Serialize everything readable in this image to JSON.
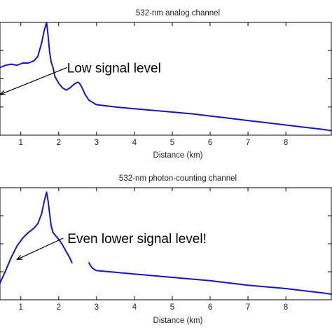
{
  "colors": {
    "series": "#1414cc",
    "axes": "#000000",
    "text": "#222222"
  },
  "chart_data": [
    {
      "type": "line",
      "title": "532-nm analog channel",
      "xlabel": "Distance (km)",
      "ylabel": "",
      "x_ticks": [
        "1",
        "2",
        "3",
        "4",
        "5",
        "6",
        "7",
        "8"
      ],
      "xlim": [
        0.45,
        9.2
      ],
      "ylim": [
        0,
        1
      ],
      "grid": false,
      "series": [
        {
          "name": "",
          "x": [
            0.45,
            0.6,
            0.75,
            0.9,
            1.05,
            1.2,
            1.35,
            1.45,
            1.55,
            1.62,
            1.68,
            1.72,
            1.76,
            1.8,
            1.85,
            1.9,
            2.0,
            2.1,
            2.2,
            2.3,
            2.4,
            2.5,
            2.55,
            2.62,
            2.7,
            2.8,
            2.9,
            3.0,
            3.5,
            4.0,
            4.5,
            5.0,
            5.5,
            6.0,
            6.5,
            7.0,
            7.5,
            8.0,
            8.5,
            9.0,
            9.2
          ],
          "y": [
            0.6,
            0.62,
            0.63,
            0.62,
            0.64,
            0.64,
            0.66,
            0.7,
            0.82,
            0.93,
            1.0,
            0.88,
            0.74,
            0.65,
            0.6,
            0.52,
            0.46,
            0.42,
            0.4,
            0.42,
            0.45,
            0.47,
            0.46,
            0.42,
            0.36,
            0.31,
            0.29,
            0.27,
            0.25,
            0.235,
            0.22,
            0.205,
            0.19,
            0.17,
            0.15,
            0.13,
            0.11,
            0.09,
            0.07,
            0.05,
            0.04
          ]
        }
      ],
      "annotations": [
        {
          "text": "Low signal level",
          "arrow_from": [
            2.22,
            0.6
          ],
          "arrow_to": [
            0.45,
            0.36
          ]
        }
      ]
    },
    {
      "type": "line",
      "title": "532-nm photon-counting channel",
      "xlabel": "Distance (km)",
      "ylabel": "",
      "x_ticks": [
        "1",
        "2",
        "3",
        "4",
        "5",
        "6",
        "7",
        "8"
      ],
      "xlim": [
        0.45,
        9.2
      ],
      "ylim": [
        0,
        1
      ],
      "grid": false,
      "series": [
        {
          "name": "",
          "x": [
            0.45,
            0.6,
            0.75,
            0.9,
            1.05,
            1.2,
            1.35,
            1.45,
            1.55,
            1.62,
            1.68,
            1.72,
            1.76,
            1.8,
            1.85,
            1.92,
            2.0,
            2.1,
            2.2,
            2.3,
            2.35
          ],
          "y": [
            0.15,
            0.26,
            0.38,
            0.48,
            0.55,
            0.6,
            0.64,
            0.68,
            0.77,
            0.88,
            0.96,
            0.88,
            0.77,
            0.66,
            0.6,
            0.57,
            0.54,
            0.49,
            0.43,
            0.37,
            0.33
          ]
        },
        {
          "name": "",
          "x": [
            2.8,
            2.85,
            2.9,
            3.0,
            3.5,
            4.0,
            4.5,
            5.0,
            5.5,
            6.0,
            6.5,
            7.0,
            7.5,
            8.0,
            8.5,
            9.0,
            9.2
          ],
          "y": [
            0.33,
            0.3,
            0.28,
            0.26,
            0.245,
            0.23,
            0.215,
            0.2,
            0.185,
            0.17,
            0.15,
            0.13,
            0.115,
            0.1,
            0.08,
            0.06,
            0.05
          ]
        }
      ],
      "annotations": [
        {
          "text": "Even lower signal level!",
          "arrow_from": [
            2.12,
            0.55
          ],
          "arrow_to": [
            0.9,
            0.36
          ]
        }
      ]
    }
  ]
}
